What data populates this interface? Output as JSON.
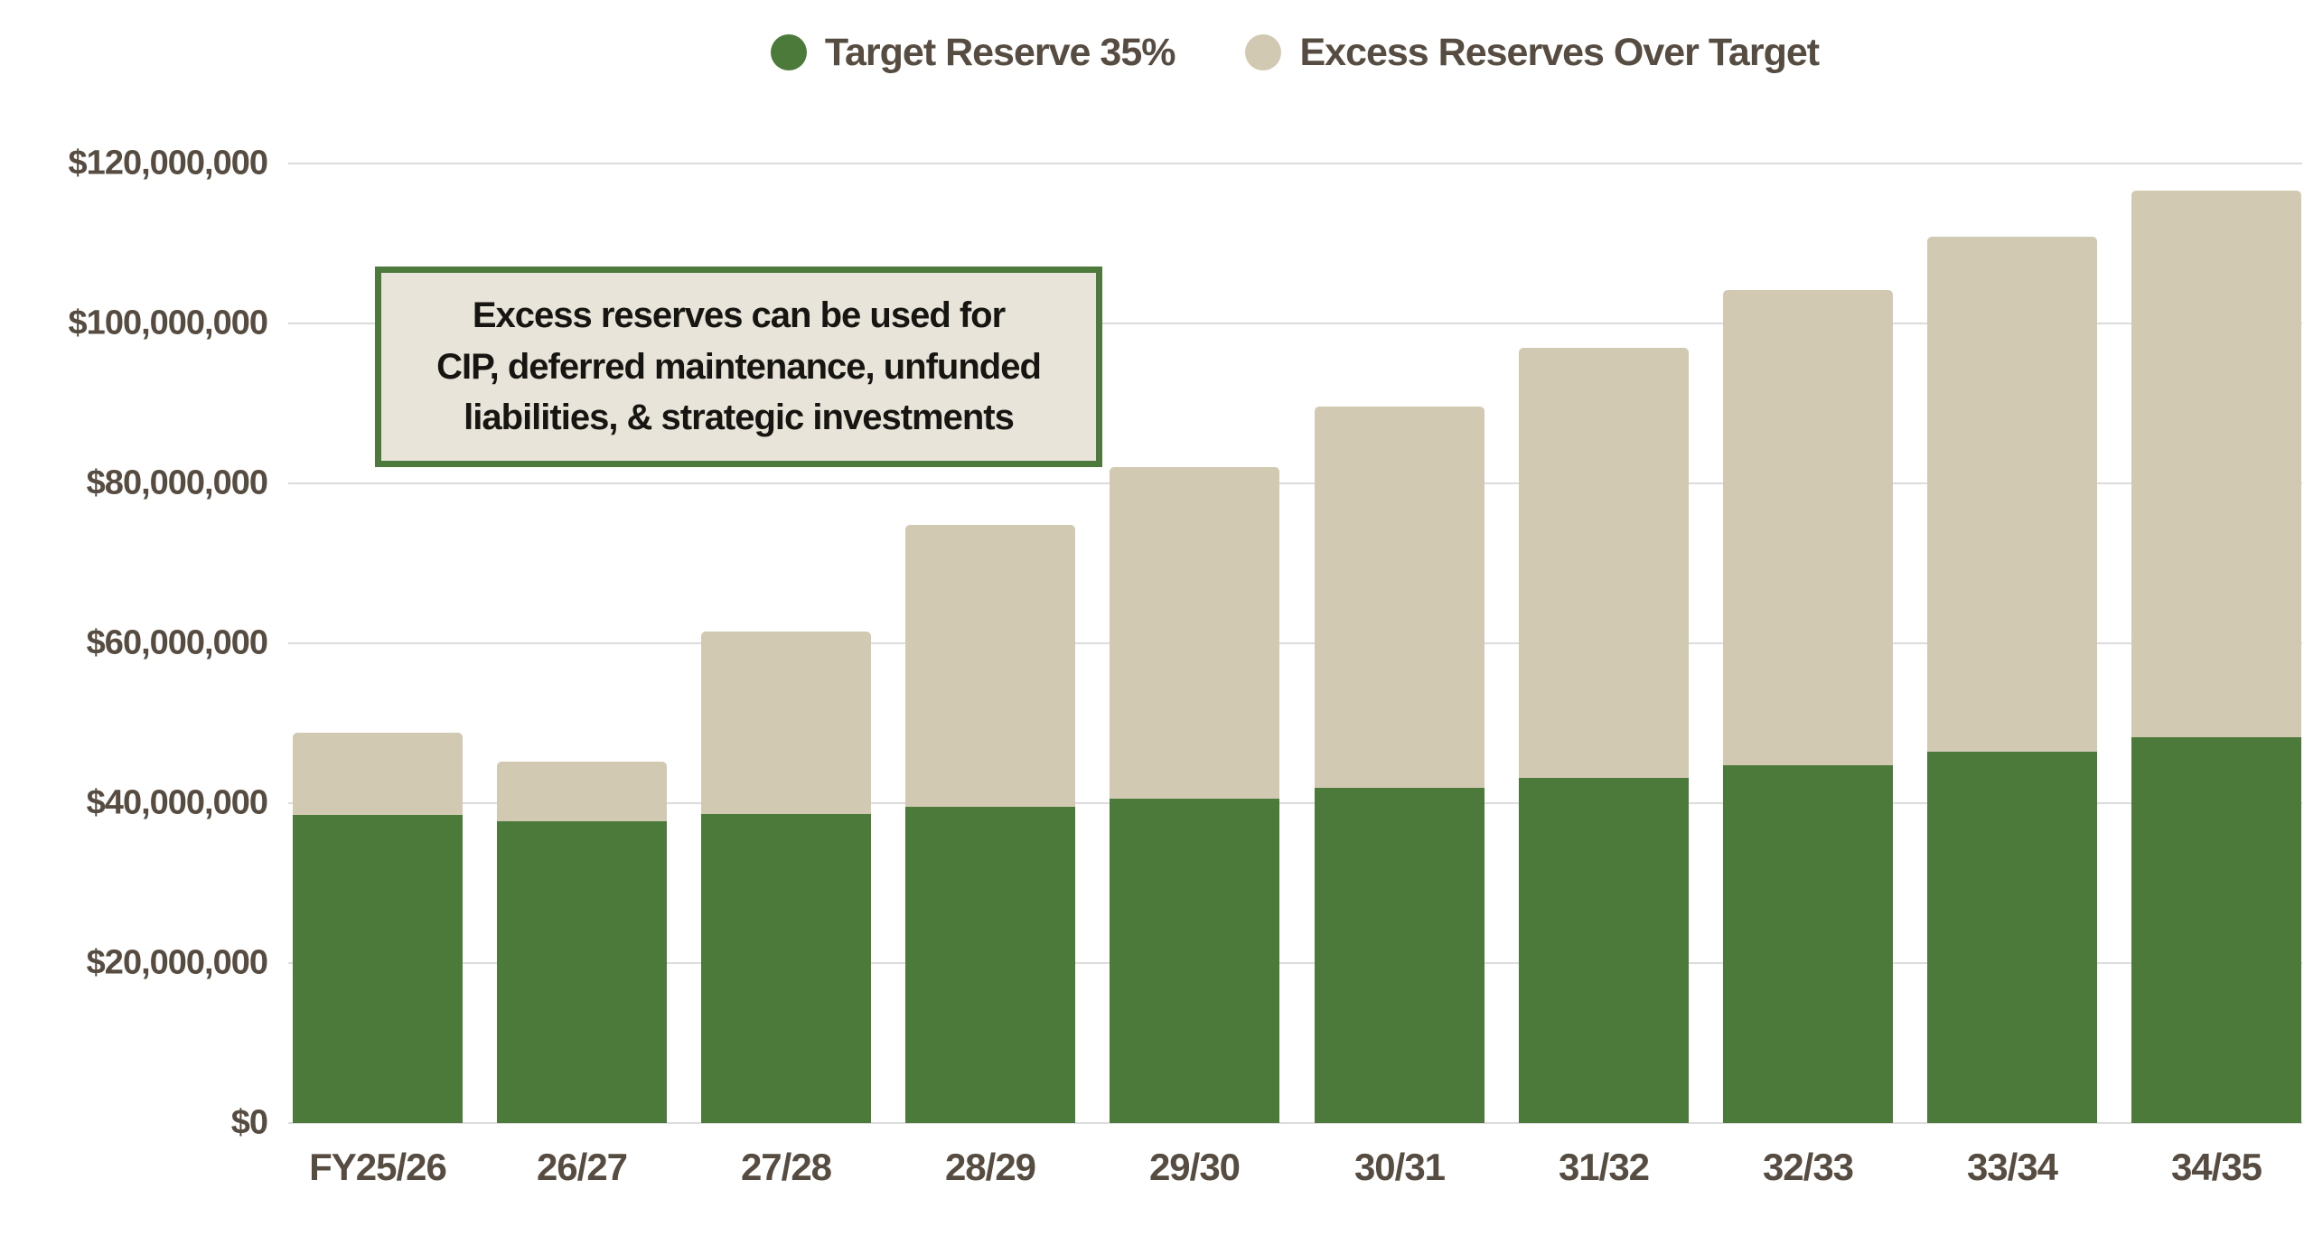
{
  "colors": {
    "target_green": "#4b7a3a",
    "excess_tan": "#d1c9b2",
    "axis_text": "#564c41",
    "gridline": "#dcdcdc",
    "annotation_bg": "#e8e4d9",
    "annotation_border": "#4d7a3c",
    "annotation_text": "#161512",
    "background": "#ffffff"
  },
  "legend": {
    "items": [
      {
        "label": "Target Reserve 35%",
        "color": "#4b7a3a"
      },
      {
        "label": "Excess Reserves Over Target",
        "color": "#d1c9b2"
      }
    ]
  },
  "annotation": {
    "lines": [
      "Excess reserves can be used for",
      "CIP, deferred maintenance, unfunded",
      "liabilities, & strategic investments"
    ]
  },
  "chart_data": {
    "type": "bar",
    "stacked": true,
    "title": "",
    "xlabel": "",
    "ylabel": "",
    "categories": [
      "FY25/26",
      "26/27",
      "27/28",
      "28/29",
      "29/30",
      "30/31",
      "31/32",
      "32/33",
      "33/34",
      "34/35"
    ],
    "series": [
      {
        "name": "Target Reserve 35%",
        "color": "#4b7a3a",
        "values": [
          38500000,
          37700000,
          38700000,
          39500000,
          40600000,
          41900000,
          43200000,
          44800000,
          46400000,
          48200000
        ]
      },
      {
        "name": "Excess Reserves Over Target",
        "color": "#d1c9b2",
        "values": [
          10300000,
          7500000,
          22800000,
          35300000,
          41500000,
          47700000,
          53800000,
          59400000,
          64400000,
          68400000
        ]
      }
    ],
    "stack_totals": [
      48800000,
      45200000,
      61500000,
      74800000,
      82100000,
      89600000,
      97000000,
      104200000,
      110800000,
      116600000
    ],
    "ylim": [
      0,
      120000000
    ],
    "ytick_step": 20000000,
    "ytick_labels": [
      "$0",
      "$20,000,000",
      "$40,000,000",
      "$60,000,000",
      "$80,000,000",
      "$100,000,000",
      "$120,000,000"
    ],
    "grid": true,
    "legend_position": "top-center"
  }
}
